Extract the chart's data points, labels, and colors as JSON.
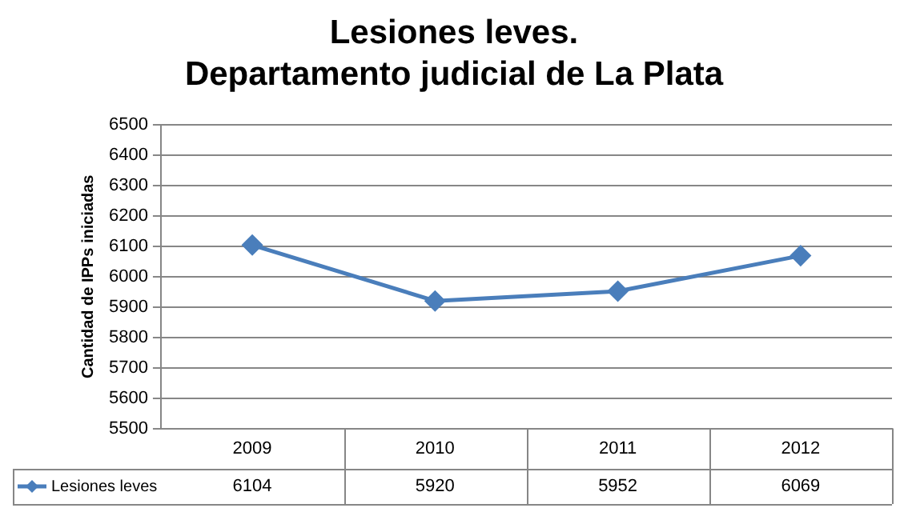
{
  "chart_data": {
    "type": "line",
    "title": "Lesiones leves.\nDepartamento judicial de La Plata",
    "ylabel": "Cantidad de IPPs iniciadas",
    "categories": [
      "2009",
      "2010",
      "2011",
      "2012"
    ],
    "series": [
      {
        "name": "Lesiones leves",
        "color": "#4a7ebb",
        "values": [
          6104,
          5920,
          5952,
          6069
        ]
      }
    ],
    "ylim": [
      5500,
      6500
    ],
    "yticks": [
      5500,
      5600,
      5700,
      5800,
      5900,
      6000,
      6100,
      6200,
      6300,
      6400,
      6500
    ],
    "grid": "y",
    "legend": "bottom",
    "marker": "diamond",
    "line_style": "solid",
    "data_labels": true
  }
}
